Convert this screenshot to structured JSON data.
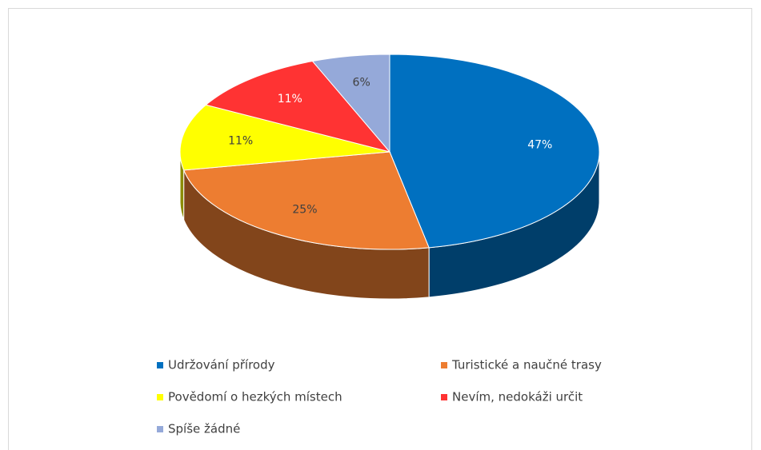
{
  "chart_data": {
    "type": "pie3d",
    "categories": [
      "Udržování přírody",
      "Turistické a naučné trasy",
      "Povědomí o hezkých místech",
      "Nevím, nedokáži určit",
      "Spíše žádné"
    ],
    "values": [
      47,
      25,
      11,
      11,
      6
    ],
    "value_labels": [
      "47%",
      "25%",
      "11%",
      "11%",
      "6%"
    ],
    "colors": [
      "#0070c0",
      "#ed7d31",
      "#ffff00",
      "#ff3333",
      "#95a9d9"
    ]
  }
}
